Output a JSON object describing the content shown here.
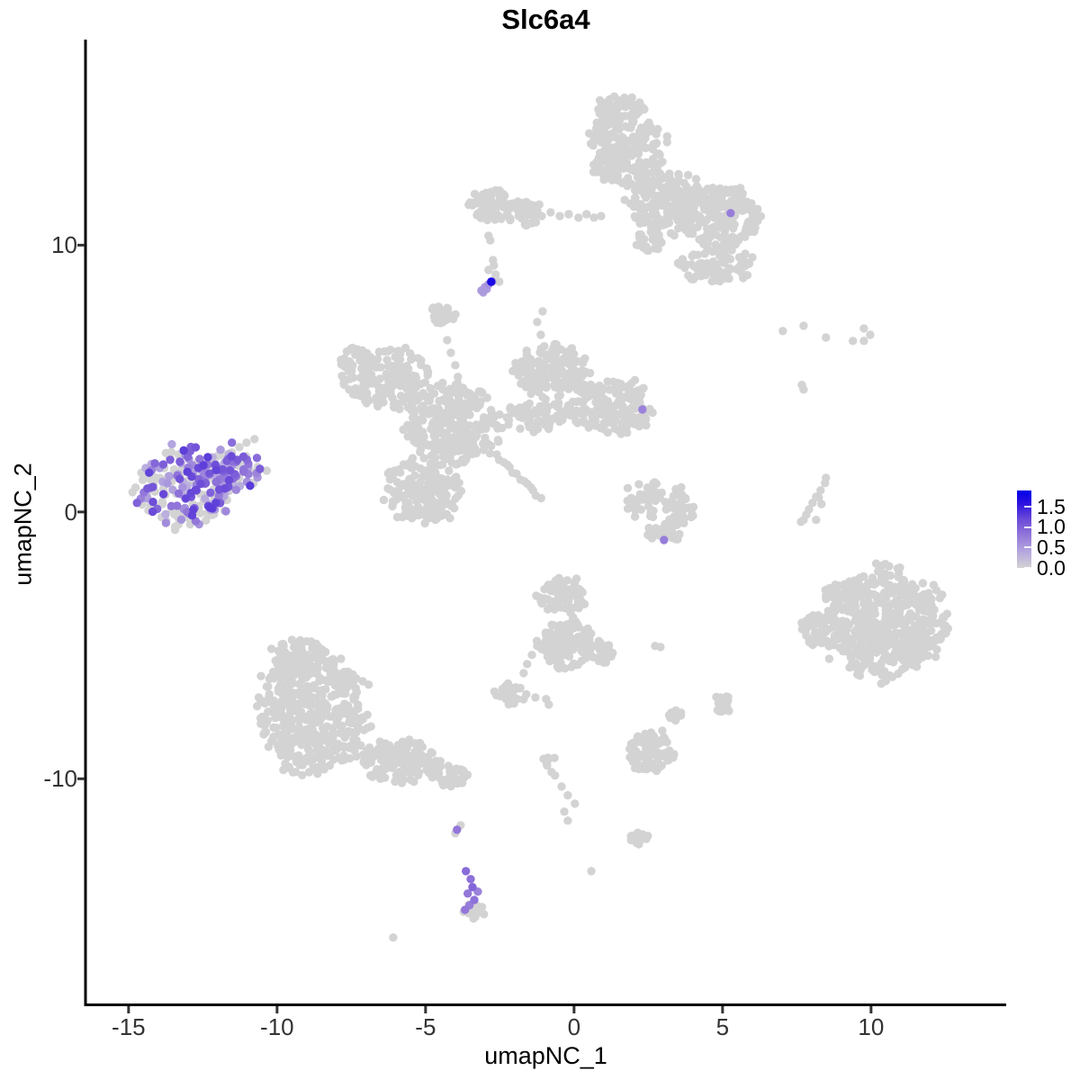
{
  "title": "Slc6a4",
  "axes": {
    "xlabel": "umapNC_1",
    "ylabel": "umapNC_2"
  },
  "chart_data": {
    "type": "scatter",
    "title": "Slc6a4",
    "subtitle": "",
    "xlabel": "umapNC_1",
    "ylabel": "umapNC_2",
    "xlim": [
      -16.45,
      14.55
    ],
    "ylim": [
      -18.49,
      17.67
    ],
    "x_ticks": [
      -15,
      -10,
      -5,
      0,
      5,
      10
    ],
    "y_ticks": [
      10,
      0,
      -10
    ],
    "grid": false,
    "background": "#ffffff",
    "point_radius_px": 4.7,
    "seed": 7,
    "color_low": "#D3D3D3",
    "color_high": "#0000E8",
    "colormap_stops": [
      [
        0,
        "#D3D3D3"
      ],
      [
        0.4,
        "#B4A6DF"
      ],
      [
        0.8,
        "#9377D9"
      ],
      [
        1.2,
        "#6A4AD8"
      ],
      [
        1.6,
        "#2A10E0"
      ],
      [
        1.9,
        "#0000E8"
      ]
    ],
    "legend": {
      "position": "right",
      "breaks": [
        "1.5",
        "1.0",
        "0.5",
        "0.0"
      ],
      "values": [
        1.5,
        1.0,
        0.5,
        0.0
      ],
      "vmin": 0,
      "vmax": 1.9
    },
    "clusters": [
      {
        "name": "left-expressing-cluster",
        "positive_fraction": 0.55,
        "vmin": 0.25,
        "vmax": 1.3,
        "blobs": [
          [
            -13.12,
            0.98,
            1.67,
            1.52,
            200
          ],
          [
            -11.61,
            1.48,
            1.21,
            0.84,
            100
          ]
        ]
      },
      {
        "name": "top-left-small-cluster",
        "positive_fraction": 0,
        "vmin": 0,
        "vmax": 0,
        "blobs": [
          [
            -2.82,
            11.5,
            0.76,
            0.61,
            70
          ],
          [
            -1.7,
            11.23,
            0.61,
            0.51,
            45
          ]
        ]
      },
      {
        "name": "top-large-cluster",
        "positive_fraction": 0,
        "vmin": 0,
        "vmax": 0,
        "blobs": [
          [
            1.73,
            13.62,
            1.36,
            1.55,
            240
          ],
          [
            1.52,
            15.08,
            0.91,
            0.51,
            60
          ],
          [
            3.15,
            11.6,
            1.36,
            1.18,
            170
          ],
          [
            4.91,
            11.03,
            1.45,
            1.25,
            190
          ],
          [
            4.85,
            9.21,
            1.36,
            0.74,
            90
          ],
          [
            2.55,
            10.15,
            0.45,
            0.51,
            25
          ]
        ]
      },
      {
        "name": "upper-center-small-blob",
        "positive_fraction": 0,
        "vmin": 0,
        "vmax": 0,
        "blobs": [
          [
            -4.42,
            7.39,
            0.45,
            0.4,
            28
          ]
        ]
      },
      {
        "name": "central-branching-cluster",
        "positive_fraction": 0,
        "vmin": 0,
        "vmax": 0,
        "blobs": [
          [
            -6.24,
            5.02,
            1.52,
            1.18,
            160
          ],
          [
            -7.33,
            5.7,
            0.55,
            0.51,
            30
          ],
          [
            -4.03,
            3.27,
            1.67,
            1.52,
            270
          ],
          [
            -5.09,
            0.81,
            1.36,
            1.28,
            170
          ],
          [
            -0.79,
            5.29,
            1.36,
            1.01,
            150
          ],
          [
            1.27,
            3.95,
            1.45,
            1.08,
            160
          ],
          [
            -1.15,
            3.61,
            1.21,
            0.61,
            70
          ]
        ]
      },
      {
        "name": "mid-right-crescent-cluster",
        "positive_fraction": 0,
        "vmin": 0,
        "vmax": 0,
        "blobs": [
          [
            2.36,
            0.44,
            0.67,
            0.84,
            45
          ],
          [
            3.58,
            0.1,
            0.61,
            0.74,
            40
          ],
          [
            3.0,
            -0.78,
            0.67,
            0.34,
            25
          ]
        ]
      },
      {
        "name": "bottom-left-large-cluster",
        "positive_fraction": 0,
        "vmin": 0,
        "vmax": 0,
        "blobs": [
          [
            -8.79,
            -7.45,
            1.88,
            2.36,
            440
          ],
          [
            -9.27,
            -5.3,
            0.91,
            0.61,
            60
          ],
          [
            -5.94,
            -9.34,
            1.36,
            0.84,
            150
          ],
          [
            -4.12,
            -9.88,
            0.76,
            0.4,
            40
          ]
        ]
      },
      {
        "name": "bottom-center-cluster",
        "positive_fraction": 0,
        "vmin": 0,
        "vmax": 0,
        "blobs": [
          [
            -0.39,
            -3.14,
            0.85,
            0.74,
            85
          ],
          [
            -0.3,
            -4.92,
            0.91,
            0.94,
            130
          ],
          [
            0.91,
            -5.23,
            0.42,
            0.47,
            25
          ]
        ]
      },
      {
        "name": "small-blob-left-of-center-bottom",
        "positive_fraction": 0,
        "vmin": 0,
        "vmax": 0,
        "blobs": [
          [
            -2.18,
            -6.81,
            0.55,
            0.5,
            30
          ]
        ]
      },
      {
        "name": "bottom-right-large-cluster",
        "positive_fraction": 0,
        "vmin": 0,
        "vmax": 0,
        "blobs": [
          [
            10.36,
            -4.15,
            2.18,
            2.09,
            540
          ],
          [
            8.12,
            -4.42,
            0.45,
            0.67,
            35
          ]
        ]
      },
      {
        "name": "small-blob-right-bottom",
        "positive_fraction": 0,
        "vmin": 0,
        "vmax": 0,
        "blobs": [
          [
            5.0,
            -7.22,
            0.33,
            0.4,
            20
          ]
        ]
      },
      {
        "name": "tiny-blob-center-bottom",
        "positive_fraction": 0,
        "vmin": 0,
        "vmax": 0,
        "blobs": [
          [
            3.42,
            -7.62,
            0.27,
            0.2,
            12
          ]
        ]
      },
      {
        "name": "bottom-small-cluster",
        "positive_fraction": 0,
        "vmin": 0,
        "vmax": 0,
        "blobs": [
          [
            2.55,
            -9.0,
            0.79,
            0.81,
            85
          ],
          [
            -0.85,
            -9.31,
            0.21,
            0.27,
            8
          ]
        ]
      },
      {
        "name": "tiny-blob-lower",
        "positive_fraction": 0,
        "vmin": 0,
        "vmax": 0,
        "blobs": [
          [
            2.24,
            -12.24,
            0.42,
            0.27,
            14
          ]
        ]
      },
      {
        "name": "gray-blob-below-purple-chain",
        "positive_fraction": 0,
        "vmin": 0,
        "vmax": 0,
        "blobs": [
          [
            -3.39,
            -14.97,
            0.4,
            0.3,
            16
          ]
        ]
      }
    ],
    "lines": [
      {
        "name": "diagonal-streak",
        "from": [
          -2.58,
          2.12
        ],
        "to": [
          -1.15,
          0.54
        ],
        "n": 14,
        "jitter": 0.06
      }
    ],
    "gray_singles": [
      [
        -11.76,
        2.06
      ],
      [
        -11.52,
        2.23
      ],
      [
        -11.27,
        2.43
      ],
      [
        -11.03,
        2.6
      ],
      [
        -10.76,
        2.73
      ],
      [
        -1.09,
        11.09
      ],
      [
        -0.79,
        11.23
      ],
      [
        -0.48,
        11.09
      ],
      [
        -0.18,
        11.16
      ],
      [
        0.15,
        11.03
      ],
      [
        0.42,
        11.16
      ],
      [
        0.67,
        11.03
      ],
      [
        0.91,
        11.09
      ],
      [
        -2.88,
        10.35
      ],
      [
        -2.82,
        10.18
      ],
      [
        -2.73,
        9.44
      ],
      [
        -2.88,
        9.07
      ],
      [
        -2.64,
        8.9
      ],
      [
        -2.7,
        9.24
      ],
      [
        -2.52,
        8.63
      ],
      [
        -4.27,
        6.44
      ],
      [
        -4.15,
        5.97
      ],
      [
        -4.0,
        5.5
      ],
      [
        -3.91,
        5.06
      ],
      [
        -1.12,
        6.64
      ],
      [
        -1.24,
        7.12
      ],
      [
        -1.06,
        7.52
      ],
      [
        -1.0,
        6.21
      ],
      [
        7.03,
        6.78
      ],
      [
        7.73,
        6.98
      ],
      [
        8.48,
        6.54
      ],
      [
        9.39,
        6.41
      ],
      [
        9.76,
        6.88
      ],
      [
        9.97,
        6.64
      ],
      [
        9.76,
        6.41
      ],
      [
        7.67,
        4.76
      ],
      [
        7.73,
        4.59
      ],
      [
        8.45,
        1.08
      ],
      [
        8.3,
        0.81
      ],
      [
        8.15,
        0.57
      ],
      [
        8.03,
        0.34
      ],
      [
        7.91,
        0.1
      ],
      [
        7.82,
        -0.1
      ],
      [
        7.73,
        -0.3
      ],
      [
        8.24,
        0.54
      ],
      [
        8.33,
        0.3
      ],
      [
        8.48,
        1.28
      ],
      [
        7.64,
        -0.37
      ],
      [
        8.15,
        -0.3
      ],
      [
        2.73,
        -5.02
      ],
      [
        2.91,
        -5.06
      ],
      [
        -1.24,
        -5.02
      ],
      [
        -1.42,
        -5.36
      ],
      [
        -1.58,
        -5.7
      ],
      [
        -1.7,
        -6.04
      ],
      [
        -1.82,
        -6.61
      ],
      [
        -1.3,
        -6.95
      ],
      [
        -0.94,
        -7.01
      ],
      [
        -0.85,
        -7.22
      ],
      [
        2.97,
        -8.2
      ],
      [
        -0.76,
        -9.75
      ],
      [
        -0.64,
        -9.88
      ],
      [
        -0.42,
        -10.29
      ],
      [
        -0.21,
        -10.62
      ],
      [
        0.03,
        -10.93
      ],
      [
        -0.33,
        -11.23
      ],
      [
        -0.21,
        -11.57
      ],
      [
        0.58,
        -13.46
      ],
      [
        -6.09,
        -15.95
      ],
      [
        -3.82,
        -11.74
      ],
      [
        -4.0,
        -12.04
      ]
    ],
    "highlight_points": [
      [
        5.27,
        11.2,
        0.75
      ],
      [
        -2.79,
        8.63,
        1.7
      ],
      [
        -3.12,
        8.3,
        0.5
      ],
      [
        -3.0,
        8.43,
        0.5
      ],
      [
        -2.88,
        8.53,
        0.55
      ],
      [
        -2.76,
        8.63,
        0.5
      ],
      [
        -3.06,
        8.23,
        0.45
      ],
      [
        -2.94,
        8.36,
        0.5
      ],
      [
        2.3,
        3.84,
        0.7
      ],
      [
        3.03,
        -1.05,
        0.75
      ],
      [
        -11.52,
        2.6,
        0.9
      ],
      [
        -3.94,
        -11.91,
        0.8
      ],
      [
        -3.64,
        -13.46,
        0.9
      ],
      [
        -3.48,
        -13.76,
        0.85
      ],
      [
        -3.42,
        -14.06,
        0.95
      ],
      [
        -3.58,
        -14.3,
        0.8
      ],
      [
        -3.24,
        -14.23,
        0.7
      ],
      [
        -3.36,
        -14.54,
        0.85
      ],
      [
        -3.52,
        -14.74,
        0.75
      ],
      [
        -3.67,
        -14.91,
        0.8
      ]
    ]
  }
}
